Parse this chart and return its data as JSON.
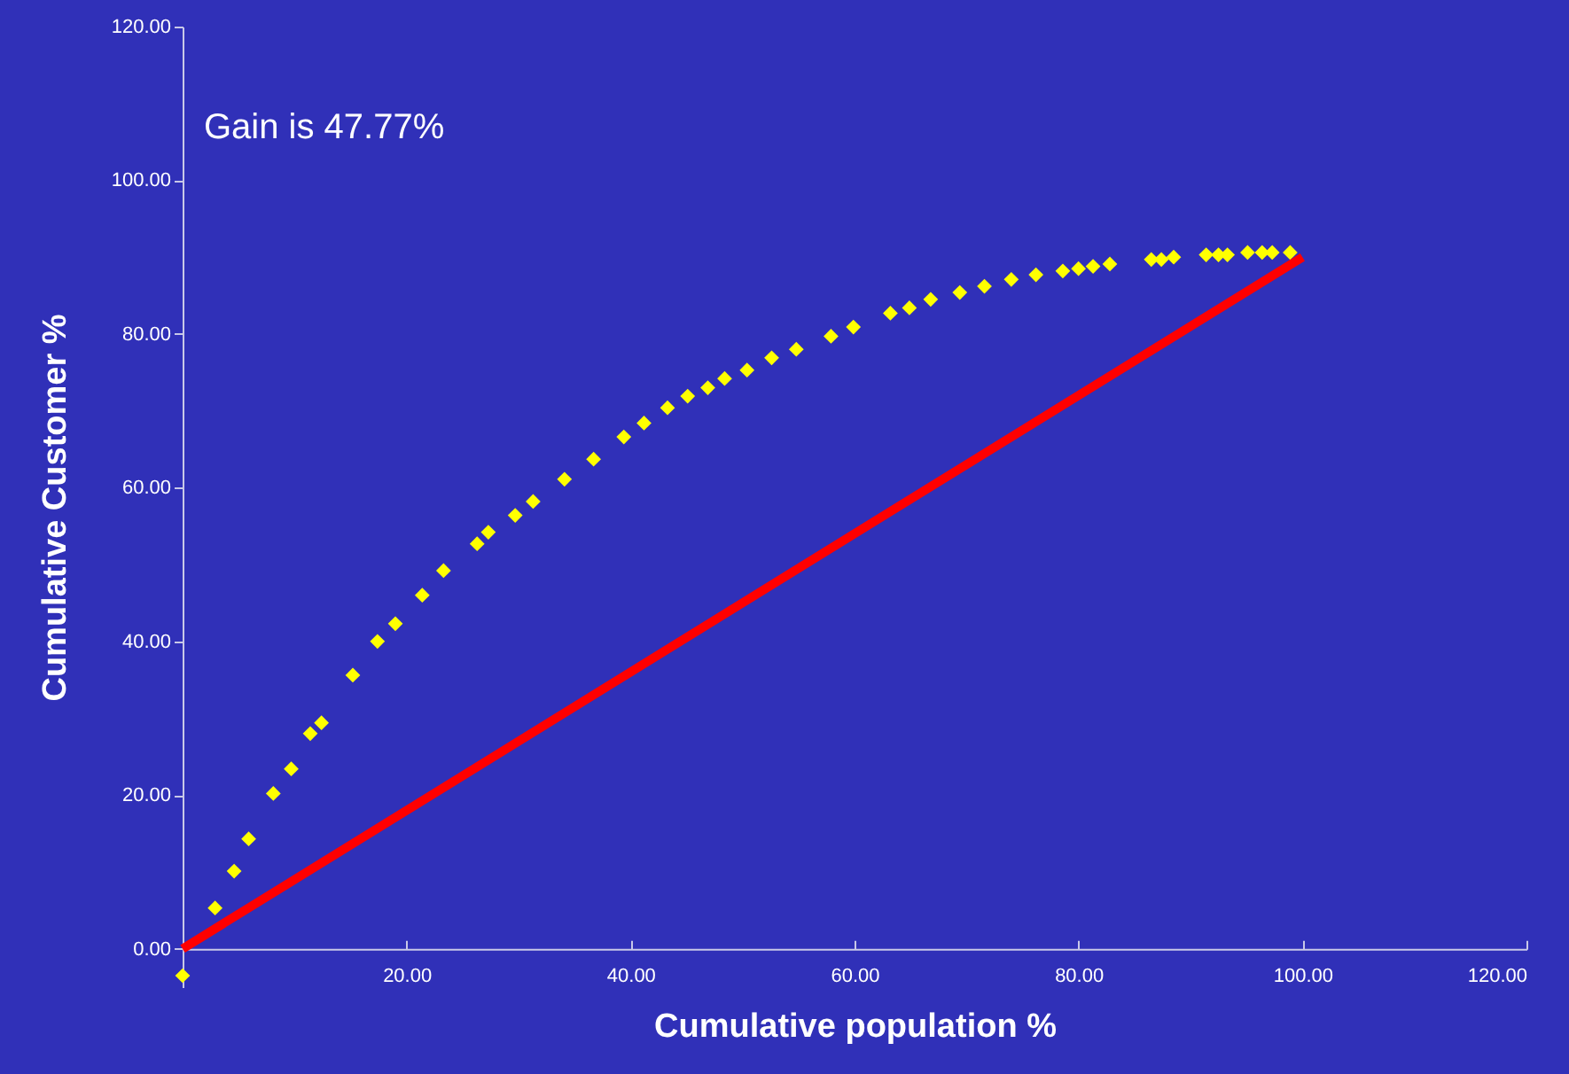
{
  "chart_data": {
    "type": "scatter",
    "xlabel": "Cumulative population %",
    "ylabel": "Cumulative Customer %",
    "annotations": [
      "Gain is 47.77%"
    ],
    "xlim": [
      0,
      120
    ],
    "ylim": [
      -5,
      120
    ],
    "xticks": [
      {
        "value": 20,
        "label": "20.00"
      },
      {
        "value": 40,
        "label": "40.00"
      },
      {
        "value": 60,
        "label": "60.00"
      },
      {
        "value": 80,
        "label": "80.00"
      },
      {
        "value": 100,
        "label": "100.00"
      },
      {
        "value": 120,
        "label": "120.00"
      }
    ],
    "yticks": [
      {
        "value": 0,
        "label": "0.00"
      },
      {
        "value": 20,
        "label": "20.00"
      },
      {
        "value": 40,
        "label": "40.00"
      },
      {
        "value": 60,
        "label": "60.00"
      },
      {
        "value": 80,
        "label": "80.00"
      },
      {
        "value": 100,
        "label": "100.00"
      },
      {
        "value": 120,
        "label": "120.00"
      }
    ],
    "grid": false,
    "series": [
      {
        "color": "#ffff00",
        "marker": "diamond",
        "x": [
          0,
          2.9,
          4.6,
          5.9,
          8.1,
          9.7,
          11.4,
          12.4,
          15.2,
          17.4,
          19.0,
          21.4,
          23.3,
          26.3,
          27.3,
          29.7,
          31.3,
          34.1,
          36.7,
          39.4,
          41.2,
          43.3,
          45.1,
          46.9,
          48.4,
          50.4,
          52.6,
          54.8,
          57.9,
          59.9,
          63.2,
          64.9,
          66.8,
          69.4,
          71.6,
          74.0,
          76.2,
          78.6,
          80.0,
          81.3,
          82.8,
          86.5,
          87.4,
          88.5,
          91.4,
          92.5,
          93.3,
          95.1,
          96.4,
          97.3,
          98.9
        ],
        "values": [
          -3.5,
          5.3,
          10.1,
          14.3,
          20.2,
          23.4,
          28.0,
          29.4,
          35.6,
          40.0,
          42.3,
          46.0,
          49.2,
          52.7,
          54.2,
          56.4,
          58.2,
          61.1,
          63.7,
          66.6,
          68.4,
          70.4,
          71.9,
          73.0,
          74.2,
          75.3,
          76.9,
          78.0,
          79.7,
          80.9,
          82.7,
          83.4,
          84.5,
          85.4,
          86.2,
          87.1,
          87.7,
          88.2,
          88.5,
          88.8,
          89.1,
          89.7,
          89.7,
          90.0,
          90.3,
          90.3,
          90.3,
          90.6,
          90.6,
          90.6,
          90.6
        ]
      },
      {
        "type": "line",
        "color": "#ff0000",
        "line_style": "solid",
        "x": [
          0,
          100
        ],
        "values": [
          0,
          90
        ]
      }
    ]
  }
}
